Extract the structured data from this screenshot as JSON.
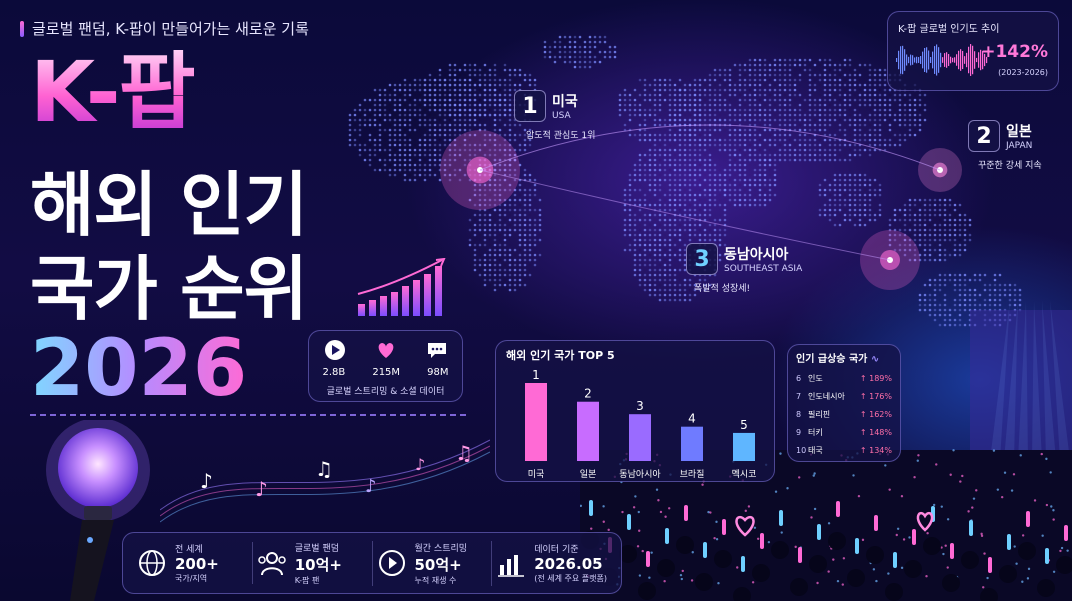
{
  "header": {
    "subtitle": "글로벌 팬덤, K-팝이 만들어가는 새로운 기록",
    "title_line1": "K-팝",
    "title_line2": "해외 인기",
    "title_line3": "국가 순위",
    "title_year": "2026"
  },
  "stats_card": {
    "streams": "2.8B",
    "likes": "215M",
    "comments": "98M",
    "caption": "글로벌 스트리밍 & 소셜 데이터",
    "icons": [
      "play-icon",
      "heart-icon",
      "chat-icon"
    ]
  },
  "trend_card": {
    "title": "K-팝 글로벌 인기도 추이",
    "value": "+142%",
    "period": "(2023-2026)"
  },
  "callouts": {
    "usa": {
      "rank": "1",
      "name": "미국",
      "en": "USA",
      "note": "압도적 관심도 1위"
    },
    "japan": {
      "rank": "2",
      "name": "일본",
      "en": "JAPAN",
      "note": "꾸준한 강세 지속"
    },
    "sea": {
      "rank": "3",
      "name": "동남아시아",
      "en": "SOUTHEAST ASIA",
      "note": "폭발적 성장세!"
    }
  },
  "chart_data": {
    "type": "bar",
    "title": "해외 인기 국가 TOP 5",
    "categories": [
      "미국",
      "일본",
      "동남아시아",
      "브라질",
      "멕시코"
    ],
    "ranks": [
      "1",
      "2",
      "3",
      "4",
      "5"
    ],
    "values": [
      100,
      76,
      60,
      44,
      36
    ],
    "colors": [
      "#ff6ad5",
      "#c86cff",
      "#9a6bff",
      "#6f7bff",
      "#5fb6ff"
    ]
  },
  "rising": {
    "title": "인기 급상승 국가",
    "items": [
      {
        "rank": "6",
        "country": "인도",
        "pct": "↑ 189%"
      },
      {
        "rank": "7",
        "country": "인도네시아",
        "pct": "↑ 176%"
      },
      {
        "rank": "8",
        "country": "필리핀",
        "pct": "↑ 162%"
      },
      {
        "rank": "9",
        "country": "터키",
        "pct": "↑ 148%"
      },
      {
        "rank": "10",
        "country": "태국",
        "pct": "↑ 134%"
      }
    ]
  },
  "bottom": {
    "items": [
      {
        "label": "전 세계",
        "value": "200+",
        "sub": "국가/지역",
        "icon": "globe-icon"
      },
      {
        "label": "글로벌 팬덤",
        "value": "10억+",
        "sub": "K-팝 팬",
        "icon": "people-icon"
      },
      {
        "label": "월간 스트리밍",
        "value": "50억+",
        "sub": "누적 재생 수",
        "icon": "play-circle-icon"
      },
      {
        "label": "데이터 기준",
        "value": "2026.05",
        "sub": "(전 세계 주요 플랫폼)",
        "icon": "bar-chart-icon"
      }
    ]
  },
  "colors": {
    "accent_pink": "#ff6ad5",
    "accent_purple": "#9a6bff",
    "accent_blue": "#5fb6ff",
    "background": "#0b0a3a"
  }
}
